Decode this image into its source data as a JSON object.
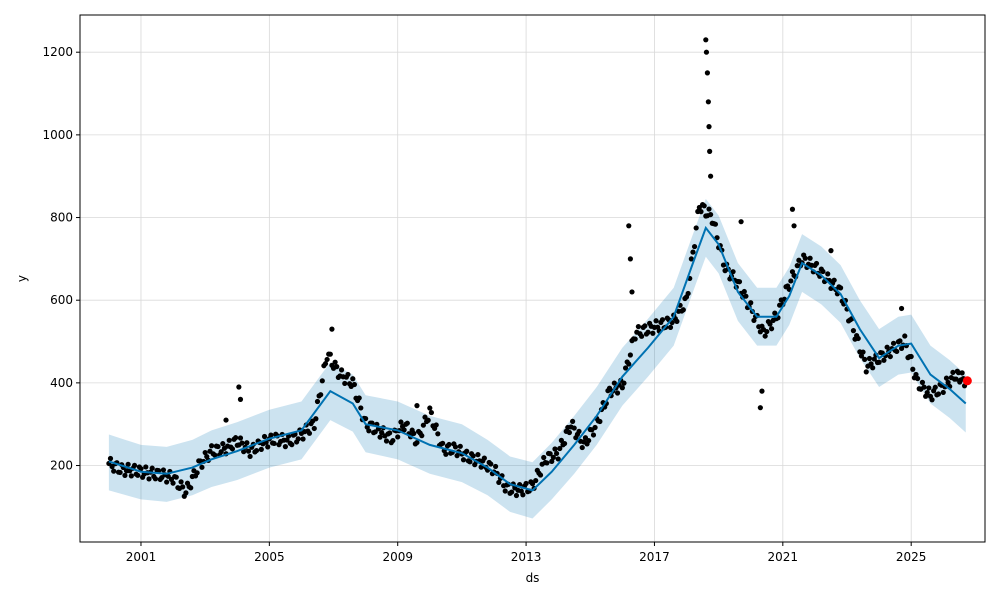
{
  "chart_data": {
    "type": "line",
    "title": "",
    "xlabel": "ds",
    "ylabel": "y",
    "xlim": [
      1999.1,
      2027.3
    ],
    "ylim": [
      15,
      1290
    ],
    "grid": true,
    "x_ticks": [
      2001,
      2005,
      2009,
      2013,
      2017,
      2021,
      2025
    ],
    "x_tick_labels": [
      "2001",
      "2005",
      "2009",
      "2013",
      "2017",
      "2021",
      "2025"
    ],
    "y_ticks": [
      200,
      400,
      600,
      800,
      1000,
      1200
    ],
    "y_tick_labels": [
      "200",
      "400",
      "600",
      "800",
      "1000",
      "1200"
    ],
    "colors": {
      "observed": "#000000",
      "forecast": "#0072B2",
      "interval": "#0072B2",
      "highlight": "#ff0000",
      "grid": "#d9d9d9"
    },
    "series": [
      {
        "role": "observed",
        "points": [
          [
            2000.0,
            205
          ],
          [
            2000.4,
            190
          ],
          [
            2000.8,
            188
          ],
          [
            2001.2,
            182
          ],
          [
            2001.6,
            178
          ],
          [
            2002.0,
            170
          ],
          [
            2002.4,
            135
          ],
          [
            2002.8,
            200
          ],
          [
            2003.2,
            235
          ],
          [
            2003.6,
            240
          ],
          [
            2004.0,
            260
          ],
          [
            2004.4,
            235
          ],
          [
            2004.8,
            255
          ],
          [
            2005.2,
            265
          ],
          [
            2005.6,
            258
          ],
          [
            2006.0,
            275
          ],
          [
            2006.4,
            300
          ],
          [
            2006.8,
            470
          ],
          [
            2007.2,
            420
          ],
          [
            2007.6,
            400
          ],
          [
            2008.0,
            300
          ],
          [
            2008.4,
            285
          ],
          [
            2008.8,
            265
          ],
          [
            2009.2,
            300
          ],
          [
            2009.6,
            260
          ],
          [
            2010.0,
            330
          ],
          [
            2010.4,
            240
          ],
          [
            2010.8,
            240
          ],
          [
            2011.2,
            220
          ],
          [
            2011.6,
            210
          ],
          [
            2012.0,
            190
          ],
          [
            2012.4,
            145
          ],
          [
            2012.8,
            140
          ],
          [
            2013.2,
            150
          ],
          [
            2013.6,
            215
          ],
          [
            2014.0,
            230
          ],
          [
            2014.4,
            300
          ],
          [
            2014.8,
            250
          ],
          [
            2015.2,
            300
          ],
          [
            2015.6,
            380
          ],
          [
            2016.0,
            395
          ],
          [
            2016.4,
            520
          ],
          [
            2016.8,
            530
          ],
          [
            2017.2,
            540
          ],
          [
            2017.6,
            550
          ],
          [
            2018.0,
            600
          ],
          [
            2018.4,
            830
          ],
          [
            2018.8,
            800
          ],
          [
            2019.2,
            680
          ],
          [
            2019.6,
            640
          ],
          [
            2020.0,
            580
          ],
          [
            2020.4,
            520
          ],
          [
            2020.8,
            560
          ],
          [
            2021.2,
            640
          ],
          [
            2021.6,
            700
          ],
          [
            2022.0,
            680
          ],
          [
            2022.4,
            650
          ],
          [
            2022.8,
            620
          ],
          [
            2023.2,
            530
          ],
          [
            2023.6,
            440
          ],
          [
            2024.0,
            460
          ],
          [
            2024.4,
            480
          ],
          [
            2024.8,
            500
          ],
          [
            2025.2,
            400
          ],
          [
            2025.6,
            370
          ],
          [
            2026.0,
            390
          ],
          [
            2026.4,
            420
          ],
          [
            2026.7,
            405
          ]
        ]
      },
      {
        "role": "observed-spikes",
        "points": [
          [
            2003.65,
            310
          ],
          [
            2004.05,
            390
          ],
          [
            2004.1,
            360
          ],
          [
            2006.95,
            530
          ],
          [
            2009.6,
            345
          ],
          [
            2016.2,
            780
          ],
          [
            2016.25,
            700
          ],
          [
            2016.3,
            620
          ],
          [
            2018.6,
            1230
          ],
          [
            2018.62,
            1200
          ],
          [
            2018.65,
            1150
          ],
          [
            2018.68,
            1080
          ],
          [
            2018.7,
            1020
          ],
          [
            2018.72,
            960
          ],
          [
            2018.75,
            900
          ],
          [
            2019.7,
            790
          ],
          [
            2020.3,
            340
          ],
          [
            2020.35,
            380
          ],
          [
            2021.3,
            820
          ],
          [
            2021.35,
            780
          ],
          [
            2022.5,
            720
          ],
          [
            2024.7,
            580
          ]
        ]
      },
      {
        "role": "forecast",
        "points": [
          [
            2000.0,
            210
          ],
          [
            2001.0,
            185
          ],
          [
            2001.8,
            180
          ],
          [
            2002.6,
            195
          ],
          [
            2003.2,
            215
          ],
          [
            2004.0,
            235
          ],
          [
            2005.0,
            265
          ],
          [
            2006.0,
            285
          ],
          [
            2006.9,
            380
          ],
          [
            2007.6,
            350
          ],
          [
            2008.0,
            300
          ],
          [
            2009.0,
            285
          ],
          [
            2010.0,
            250
          ],
          [
            2011.0,
            230
          ],
          [
            2011.8,
            195
          ],
          [
            2012.5,
            155
          ],
          [
            2013.2,
            140
          ],
          [
            2013.8,
            185
          ],
          [
            2014.5,
            250
          ],
          [
            2015.2,
            320
          ],
          [
            2016.0,
            415
          ],
          [
            2016.8,
            485
          ],
          [
            2017.6,
            560
          ],
          [
            2018.2,
            690
          ],
          [
            2018.6,
            775
          ],
          [
            2019.0,
            735
          ],
          [
            2019.6,
            620
          ],
          [
            2020.2,
            560
          ],
          [
            2020.8,
            560
          ],
          [
            2021.2,
            610
          ],
          [
            2021.6,
            690
          ],
          [
            2022.2,
            660
          ],
          [
            2022.8,
            615
          ],
          [
            2023.4,
            530
          ],
          [
            2024.0,
            460
          ],
          [
            2024.6,
            490
          ],
          [
            2025.0,
            495
          ],
          [
            2025.6,
            420
          ],
          [
            2026.2,
            385
          ],
          [
            2026.7,
            350
          ]
        ]
      },
      {
        "role": "interval-upper",
        "points": [
          [
            2000.0,
            275
          ],
          [
            2001.0,
            250
          ],
          [
            2001.8,
            245
          ],
          [
            2002.6,
            262
          ],
          [
            2003.2,
            285
          ],
          [
            2004.0,
            305
          ],
          [
            2005.0,
            335
          ],
          [
            2006.0,
            355
          ],
          [
            2006.9,
            450
          ],
          [
            2007.6,
            420
          ],
          [
            2008.0,
            370
          ],
          [
            2009.0,
            355
          ],
          [
            2010.0,
            320
          ],
          [
            2011.0,
            300
          ],
          [
            2011.8,
            262
          ],
          [
            2012.5,
            222
          ],
          [
            2013.2,
            208
          ],
          [
            2013.8,
            255
          ],
          [
            2014.5,
            320
          ],
          [
            2015.2,
            390
          ],
          [
            2016.0,
            485
          ],
          [
            2016.8,
            555
          ],
          [
            2017.6,
            630
          ],
          [
            2018.2,
            760
          ],
          [
            2018.6,
            845
          ],
          [
            2019.0,
            805
          ],
          [
            2019.6,
            690
          ],
          [
            2020.2,
            630
          ],
          [
            2020.8,
            630
          ],
          [
            2021.2,
            680
          ],
          [
            2021.6,
            760
          ],
          [
            2022.2,
            730
          ],
          [
            2022.8,
            685
          ],
          [
            2023.4,
            600
          ],
          [
            2024.0,
            530
          ],
          [
            2024.6,
            560
          ],
          [
            2025.0,
            565
          ],
          [
            2025.6,
            490
          ],
          [
            2026.2,
            455
          ],
          [
            2026.7,
            420
          ]
        ]
      },
      {
        "role": "interval-lower",
        "points": [
          [
            2000.0,
            140
          ],
          [
            2001.0,
            118
          ],
          [
            2001.8,
            112
          ],
          [
            2002.6,
            128
          ],
          [
            2003.2,
            148
          ],
          [
            2004.0,
            165
          ],
          [
            2005.0,
            195
          ],
          [
            2006.0,
            215
          ],
          [
            2006.9,
            310
          ],
          [
            2007.6,
            282
          ],
          [
            2008.0,
            232
          ],
          [
            2009.0,
            215
          ],
          [
            2010.0,
            180
          ],
          [
            2011.0,
            160
          ],
          [
            2011.8,
            128
          ],
          [
            2012.5,
            88
          ],
          [
            2013.2,
            72
          ],
          [
            2013.8,
            118
          ],
          [
            2014.5,
            180
          ],
          [
            2015.2,
            250
          ],
          [
            2016.0,
            345
          ],
          [
            2016.8,
            415
          ],
          [
            2017.6,
            490
          ],
          [
            2018.2,
            620
          ],
          [
            2018.6,
            705
          ],
          [
            2019.0,
            665
          ],
          [
            2019.6,
            550
          ],
          [
            2020.2,
            490
          ],
          [
            2020.8,
            490
          ],
          [
            2021.2,
            540
          ],
          [
            2021.6,
            620
          ],
          [
            2022.2,
            590
          ],
          [
            2022.8,
            545
          ],
          [
            2023.4,
            460
          ],
          [
            2024.0,
            390
          ],
          [
            2024.6,
            420
          ],
          [
            2025.0,
            425
          ],
          [
            2025.6,
            350
          ],
          [
            2026.2,
            315
          ],
          [
            2026.7,
            280
          ]
        ]
      },
      {
        "role": "highlight",
        "points": [
          [
            2026.75,
            405
          ]
        ]
      }
    ]
  }
}
